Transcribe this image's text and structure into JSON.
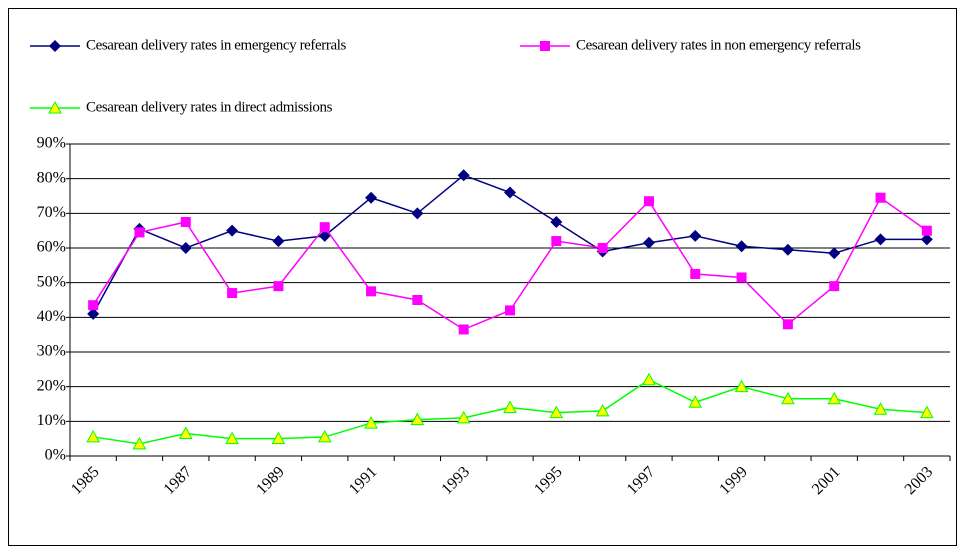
{
  "chart_data": {
    "type": "line",
    "categories": [
      "1985",
      null,
      "1987",
      null,
      "1989",
      null,
      "1991",
      null,
      "1993",
      null,
      "1995",
      null,
      "1997",
      null,
      "1999",
      null,
      "2001",
      null,
      "2003"
    ],
    "series": [
      {
        "name": "Cesarean delivery rates in emergency referrals",
        "color": "#000080",
        "marker": "diamond",
        "marker_fill": "#000080",
        "values": [
          41,
          65.5,
          60,
          65,
          62,
          63.5,
          74.5,
          70,
          81,
          76,
          67.5,
          59,
          61.5,
          63.5,
          60.5,
          59.5,
          58.5,
          62.5,
          62.5
        ]
      },
      {
        "name": "Cesarean delivery rates in non emergency referrals",
        "color": "#ff00ff",
        "marker": "square",
        "marker_fill": "#ff00ff",
        "values": [
          43.5,
          64.5,
          67.5,
          47,
          49,
          66,
          47.5,
          45,
          36.5,
          42,
          62,
          60,
          73.5,
          52.5,
          51.5,
          38,
          49,
          74.5,
          65
        ]
      },
      {
        "name": "Cesarean delivery rates in direct admissions",
        "color": "#00ff00",
        "marker": "triangle",
        "marker_fill": "#ffff00",
        "values": [
          5.5,
          3.5,
          6.5,
          5,
          5,
          5.5,
          9.5,
          10.5,
          11,
          14,
          12.5,
          13,
          22,
          15.5,
          20,
          16.5,
          16.5,
          13.5,
          12.5
        ]
      }
    ],
    "ylim": [
      0,
      90
    ],
    "yticks": [
      {
        "value": 0,
        "label": "0%"
      },
      {
        "value": 10,
        "label": "10%"
      },
      {
        "value": 20,
        "label": "20%"
      },
      {
        "value": 30,
        "label": "30%"
      },
      {
        "value": 40,
        "label": "40%"
      },
      {
        "value": 50,
        "label": "50%"
      },
      {
        "value": 60,
        "label": "60%"
      },
      {
        "value": 70,
        "label": "70%"
      },
      {
        "value": 80,
        "label": "80%"
      },
      {
        "value": 90,
        "label": "90%"
      }
    ],
    "grid": true,
    "legend": "top"
  }
}
